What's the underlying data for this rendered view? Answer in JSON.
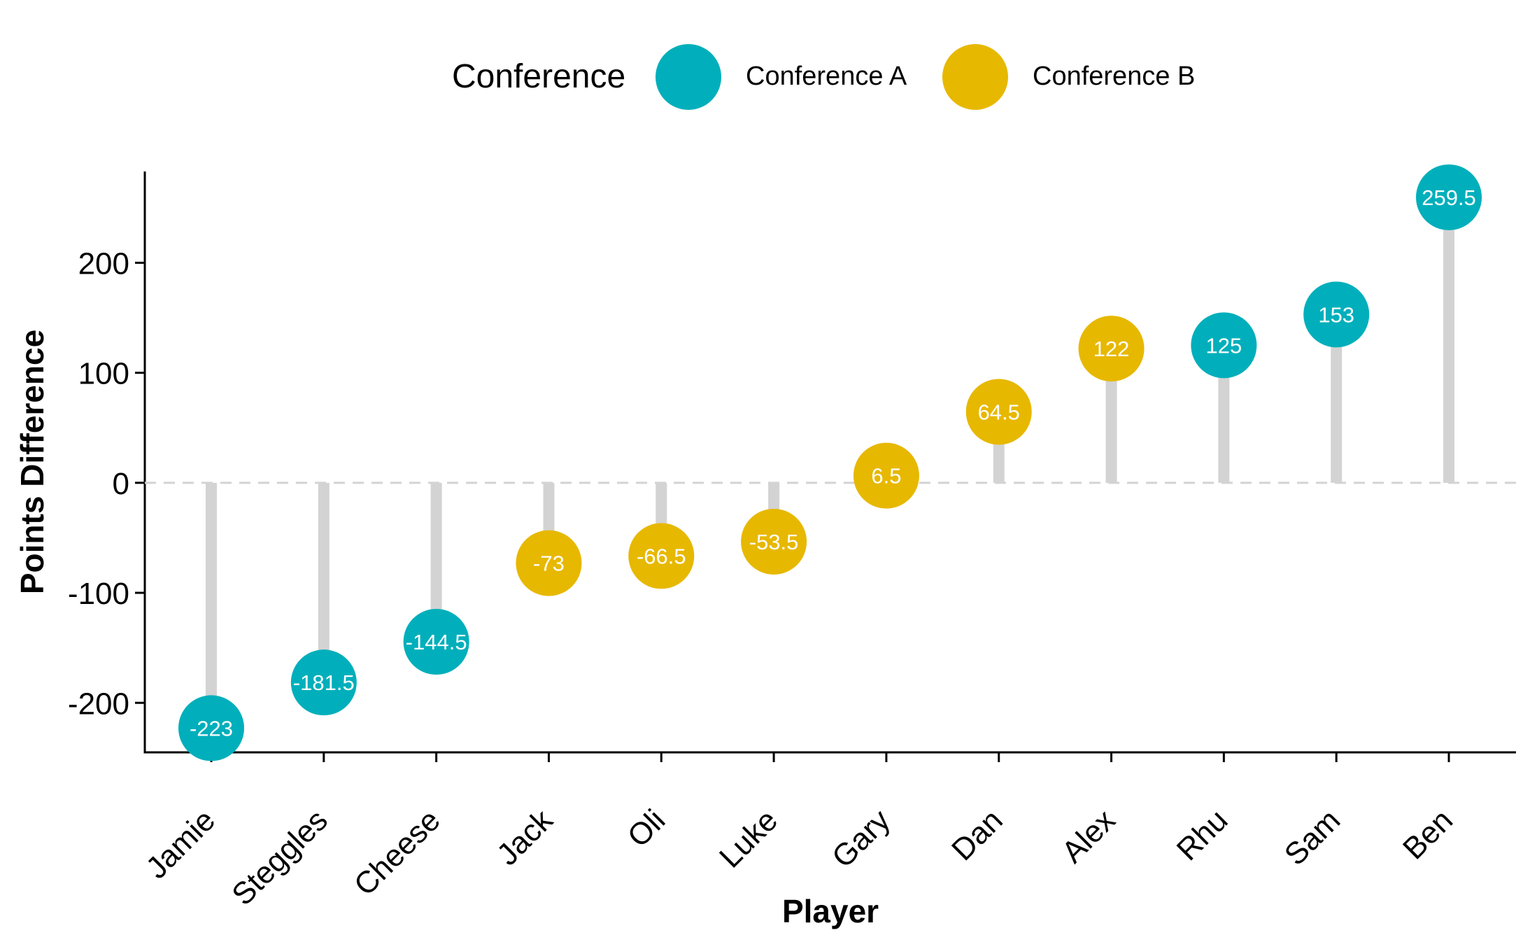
{
  "legend": {
    "title": "Conference",
    "items": [
      {
        "label": "Conference A",
        "color": "#00AFBB"
      },
      {
        "label": "Conference B",
        "color": "#E7B800"
      }
    ],
    "position": "top"
  },
  "chart_data": {
    "type": "lollipop",
    "xlabel": "Player",
    "ylabel": "Points Difference",
    "categories": [
      "Jamie",
      "Steggles",
      "Cheese",
      "Jack",
      "Oli",
      "Luke",
      "Gary",
      "Dan",
      "Alex",
      "Rhu",
      "Sam",
      "Ben"
    ],
    "values": [
      -223,
      -181.5,
      -144.5,
      -73,
      -66.5,
      -53.5,
      6.5,
      64.5,
      122,
      125,
      153,
      259.5
    ],
    "labels": [
      "-223",
      "-181.5",
      "-144.5",
      "-73",
      "-66.5",
      "-53.5",
      "6.5",
      "64.5",
      "122",
      "125",
      "153",
      "259.5"
    ],
    "groups": [
      "Conference A",
      "Conference A",
      "Conference A",
      "Conference B",
      "Conference B",
      "Conference B",
      "Conference B",
      "Conference B",
      "Conference B",
      "Conference A",
      "Conference A",
      "Conference A"
    ],
    "ylim": [
      -245,
      283
    ],
    "yticks": [
      -200,
      -100,
      0,
      100,
      200
    ],
    "ytick_labels": [
      "-200",
      "-100",
      "0",
      "100",
      "200"
    ],
    "reference_line": 0,
    "segment_color": "#D3D3D3",
    "grid": false
  }
}
